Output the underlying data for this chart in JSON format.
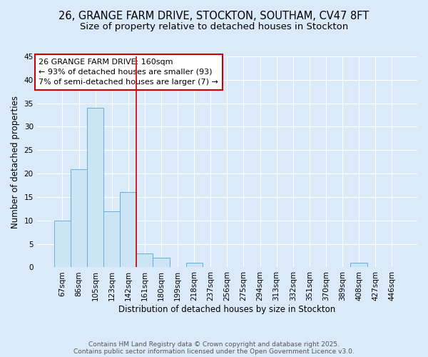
{
  "title1": "26, GRANGE FARM DRIVE, STOCKTON, SOUTHAM, CV47 8FT",
  "title2": "Size of property relative to detached houses in Stockton",
  "xlabel": "Distribution of detached houses by size in Stockton",
  "ylabel": "Number of detached properties",
  "bar_labels": [
    "67sqm",
    "86sqm",
    "105sqm",
    "123sqm",
    "142sqm",
    "161sqm",
    "180sqm",
    "199sqm",
    "218sqm",
    "237sqm",
    "256sqm",
    "275sqm",
    "294sqm",
    "313sqm",
    "332sqm",
    "351sqm",
    "370sqm",
    "389sqm",
    "408sqm",
    "427sqm",
    "446sqm"
  ],
  "bar_values": [
    10,
    21,
    34,
    12,
    16,
    3,
    2,
    0,
    1,
    0,
    0,
    0,
    0,
    0,
    0,
    0,
    0,
    0,
    1,
    0,
    0
  ],
  "bar_color": "#cce5f5",
  "bar_edge_color": "#6baed6",
  "bg_color": "#daeaf8",
  "grid_color": "#ffffff",
  "vline_x": 4.5,
  "vline_color": "#cc0000",
  "annotation_text": "26 GRANGE FARM DRIVE: 160sqm\n← 93% of detached houses are smaller (93)\n7% of semi-detached houses are larger (7) →",
  "annotation_box_color": "#ffffff",
  "annotation_edge_color": "#cc0000",
  "ylim": [
    0,
    45
  ],
  "yticks": [
    0,
    5,
    10,
    15,
    20,
    25,
    30,
    35,
    40,
    45
  ],
  "footer1": "Contains HM Land Registry data © Crown copyright and database right 2025.",
  "footer2": "Contains public sector information licensed under the Open Government Licence v3.0.",
  "title1_fontsize": 10.5,
  "title2_fontsize": 9.5,
  "xlabel_fontsize": 8.5,
  "ylabel_fontsize": 8.5,
  "tick_fontsize": 7.5,
  "annotation_fontsize": 8,
  "footer_fontsize": 6.5
}
